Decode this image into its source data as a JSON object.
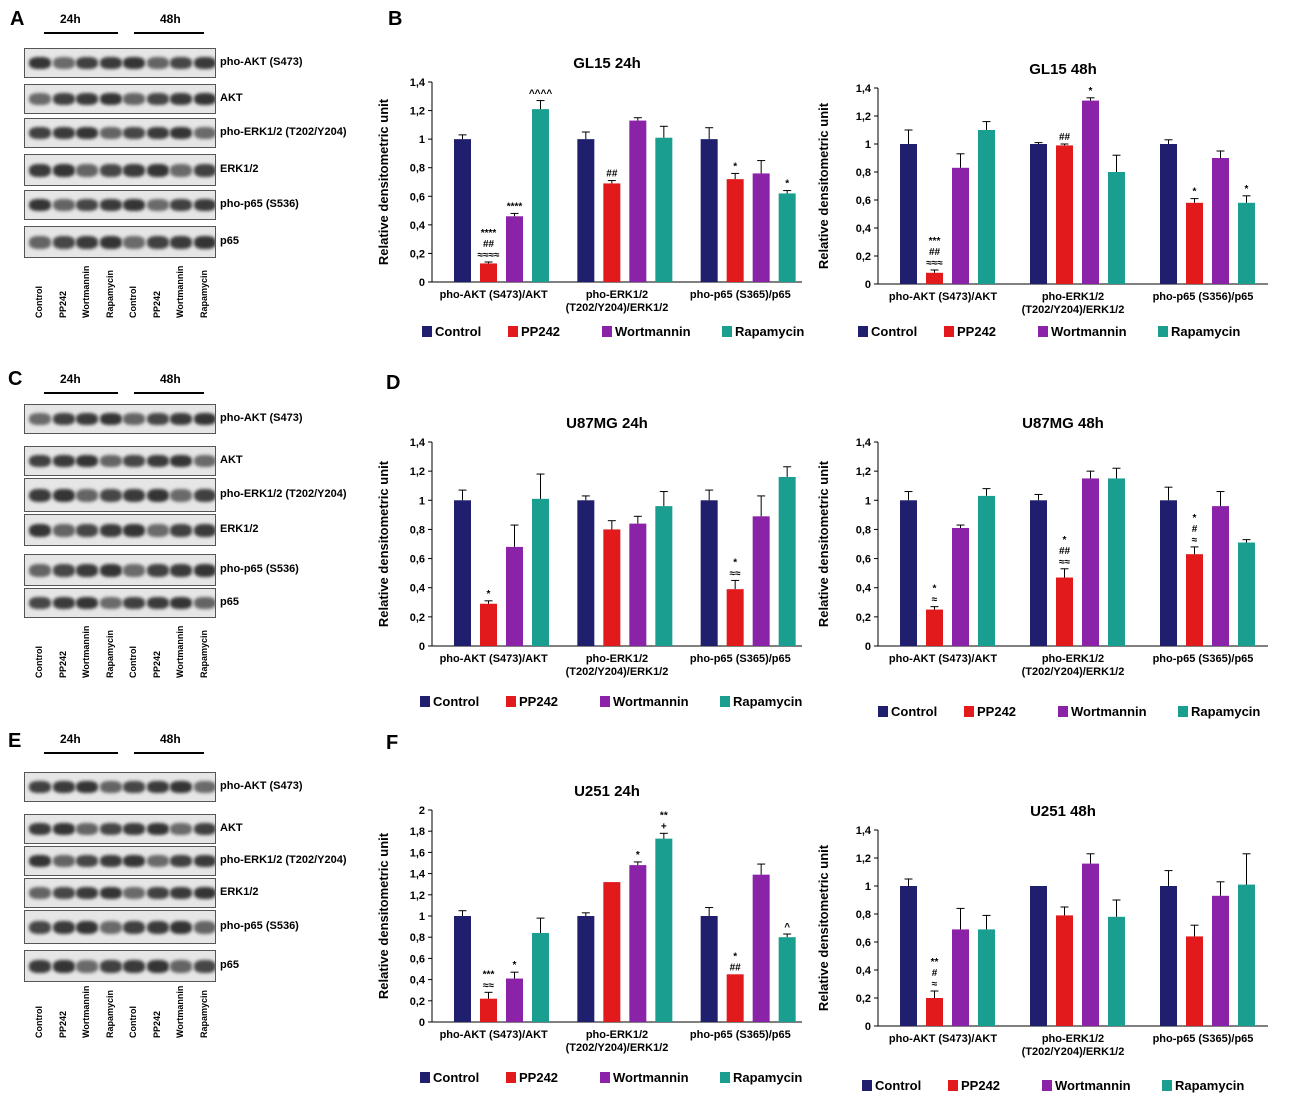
{
  "panels": {
    "A": "A",
    "B": "B",
    "C": "C",
    "D": "D",
    "E": "E",
    "F": "F"
  },
  "blots": {
    "time_labels": [
      "24h",
      "48h"
    ],
    "row_labels": [
      "pho-AKT (S473)",
      "AKT",
      "pho-ERK1/2 (T202/Y204)",
      "ERK1/2",
      "pho-p65 (S536)",
      "p65"
    ],
    "lane_labels": [
      "Control",
      "PP242",
      "Wortmannin",
      "Rapamycin",
      "Control",
      "PP242",
      "Wortmannin",
      "Rapamycin"
    ]
  },
  "legend": {
    "items": [
      "Control",
      "PP242",
      "Wortmannin",
      "Rapamycin"
    ]
  },
  "colors": {
    "Control": "#1f1f6e",
    "PP242": "#e31a1c",
    "Wortmannin": "#8a23a8",
    "Rapamycin": "#1a9e8f"
  },
  "chart_data": [
    {
      "id": "B1",
      "type": "bar",
      "title": "GL15 24h",
      "ylabel": "Relative densitometric unit",
      "ylim": [
        0,
        1.4
      ],
      "yticks": [
        "0",
        "0,2",
        "0,4",
        "0,6",
        "0,8",
        "1",
        "1,2",
        "1,4"
      ],
      "groups": [
        "pho-AKT (S473)/AKT",
        "pho-ERK1/2\n(T202/Y204)/ERK1/2",
        "pho-p65 (S365)/p65"
      ],
      "series": [
        {
          "name": "Control",
          "values": [
            1.0,
            1.0,
            1.0
          ],
          "errors": [
            0.03,
            0.05,
            0.08
          ]
        },
        {
          "name": "PP242",
          "values": [
            0.13,
            0.69,
            0.72
          ],
          "errors": [
            0.01,
            0.02,
            0.04
          ]
        },
        {
          "name": "Wortmannin",
          "values": [
            0.46,
            1.13,
            0.76
          ],
          "errors": [
            0.02,
            0.02,
            0.09
          ]
        },
        {
          "name": "Rapamycin",
          "values": [
            1.21,
            1.01,
            0.62
          ],
          "errors": [
            0.06,
            0.08,
            0.02
          ]
        }
      ],
      "annotations": [
        {
          "group": 0,
          "series": 1,
          "text": [
            "****",
            "##",
            "≈≈≈≈"
          ]
        },
        {
          "group": 0,
          "series": 2,
          "text": [
            "****"
          ]
        },
        {
          "group": 0,
          "series": 3,
          "text": [
            "^^^^"
          ]
        },
        {
          "group": 1,
          "series": 1,
          "text": [
            "##"
          ]
        },
        {
          "group": 2,
          "series": 1,
          "text": [
            "*"
          ]
        },
        {
          "group": 2,
          "series": 3,
          "text": [
            "*"
          ]
        }
      ]
    },
    {
      "id": "B2",
      "type": "bar",
      "title": "GL15 48h",
      "ylabel": "Relative densitometric unit",
      "ylim": [
        0,
        1.4
      ],
      "yticks": [
        "0",
        "0,2",
        "0,4",
        "0,6",
        "0,8",
        "1",
        "1,2",
        "1,4"
      ],
      "groups": [
        "pho-AKT (S473)/AKT",
        "pho-ERK1/2\n(T202/Y204)/ERK1/2",
        "pho-p65 (S356)/p65"
      ],
      "series": [
        {
          "name": "Control",
          "values": [
            1.0,
            1.0,
            1.0
          ],
          "errors": [
            0.1,
            0.01,
            0.03
          ]
        },
        {
          "name": "PP242",
          "values": [
            0.08,
            0.99,
            0.58
          ],
          "errors": [
            0.02,
            0.01,
            0.03
          ]
        },
        {
          "name": "Wortmannin",
          "values": [
            0.83,
            1.31,
            0.9
          ],
          "errors": [
            0.1,
            0.02,
            0.05
          ]
        },
        {
          "name": "Rapamycin",
          "values": [
            1.1,
            0.8,
            0.58
          ],
          "errors": [
            0.06,
            0.12,
            0.05
          ]
        }
      ],
      "annotations": [
        {
          "group": 0,
          "series": 1,
          "text": [
            "***",
            "##",
            "≈≈≈"
          ]
        },
        {
          "group": 1,
          "series": 1,
          "text": [
            "##"
          ]
        },
        {
          "group": 1,
          "series": 2,
          "text": [
            "*"
          ]
        },
        {
          "group": 2,
          "series": 1,
          "text": [
            "*"
          ]
        },
        {
          "group": 2,
          "series": 3,
          "text": [
            "*"
          ]
        }
      ]
    },
    {
      "id": "D1",
      "type": "bar",
      "title": "U87MG 24h",
      "ylabel": "Relative densitometric unit",
      "ylim": [
        0,
        1.4
      ],
      "yticks": [
        "0",
        "0,2",
        "0,4",
        "0,6",
        "0,8",
        "1",
        "1,2",
        "1,4"
      ],
      "groups": [
        "pho-AKT (S473)/AKT",
        "pho-ERK1/2\n(T202/Y204)/ERK1/2",
        "pho-p65 (S365)/p65"
      ],
      "series": [
        {
          "name": "Control",
          "values": [
            1.0,
            1.0,
            1.0
          ],
          "errors": [
            0.07,
            0.03,
            0.07
          ]
        },
        {
          "name": "PP242",
          "values": [
            0.29,
            0.8,
            0.39
          ],
          "errors": [
            0.02,
            0.06,
            0.06
          ]
        },
        {
          "name": "Wortmannin",
          "values": [
            0.68,
            0.84,
            0.89
          ],
          "errors": [
            0.15,
            0.05,
            0.14
          ]
        },
        {
          "name": "Rapamycin",
          "values": [
            1.01,
            0.96,
            1.16
          ],
          "errors": [
            0.17,
            0.1,
            0.07
          ]
        }
      ],
      "annotations": [
        {
          "group": 0,
          "series": 1,
          "text": [
            "*"
          ]
        },
        {
          "group": 2,
          "series": 1,
          "text": [
            "*",
            "≈≈"
          ]
        }
      ]
    },
    {
      "id": "D2",
      "type": "bar",
      "title": "U87MG 48h",
      "ylabel": "Relative densitometric unit",
      "ylim": [
        0,
        1.4
      ],
      "yticks": [
        "0",
        "0,2",
        "0,4",
        "0,6",
        "0,8",
        "1",
        "1,2",
        "1,4"
      ],
      "groups": [
        "pho-AKT (S473)/AKT",
        "pho-ERK1/2\n(T202/Y204)/ERK1/2",
        "pho-p65 (S365)/p65"
      ],
      "series": [
        {
          "name": "Control",
          "values": [
            1.0,
            1.0,
            1.0
          ],
          "errors": [
            0.06,
            0.04,
            0.09
          ]
        },
        {
          "name": "PP242",
          "values": [
            0.25,
            0.47,
            0.63
          ],
          "errors": [
            0.02,
            0.06,
            0.05
          ]
        },
        {
          "name": "Wortmannin",
          "values": [
            0.81,
            1.15,
            0.96
          ],
          "errors": [
            0.02,
            0.05,
            0.1
          ]
        },
        {
          "name": "Rapamycin",
          "values": [
            1.03,
            1.15,
            0.71
          ],
          "errors": [
            0.05,
            0.07,
            0.02
          ]
        }
      ],
      "annotations": [
        {
          "group": 0,
          "series": 1,
          "text": [
            "*",
            "≈"
          ]
        },
        {
          "group": 1,
          "series": 1,
          "text": [
            "*",
            "##",
            "≈≈"
          ]
        },
        {
          "group": 2,
          "series": 1,
          "text": [
            "*",
            "#",
            "≈"
          ]
        }
      ]
    },
    {
      "id": "F1",
      "type": "bar",
      "title": "U251 24h",
      "ylabel": "Relative densitometric unit",
      "ylim": [
        0,
        2.0
      ],
      "yticks": [
        "0",
        "0,2",
        "0,4",
        "0,6",
        "0,8",
        "1",
        "1,2",
        "1,4",
        "1,6",
        "1,8",
        "2"
      ],
      "groups": [
        "pho-AKT (S473)/AKT",
        "pho-ERK1/2\n(T202/Y204)/ERK1/2",
        "pho-p65 (S365)/p65"
      ],
      "series": [
        {
          "name": "Control",
          "values": [
            1.0,
            1.0,
            1.0
          ],
          "errors": [
            0.05,
            0.03,
            0.08
          ]
        },
        {
          "name": "PP242",
          "values": [
            0.22,
            1.32,
            0.45
          ],
          "errors": [
            0.06,
            0.0,
            0.0
          ]
        },
        {
          "name": "Wortmannin",
          "values": [
            0.41,
            1.48,
            1.39
          ],
          "errors": [
            0.06,
            0.03,
            0.1
          ]
        },
        {
          "name": "Rapamycin",
          "values": [
            0.84,
            1.73,
            0.8
          ],
          "errors": [
            0.14,
            0.05,
            0.03
          ]
        }
      ],
      "annotations": [
        {
          "group": 0,
          "series": 1,
          "text": [
            "***",
            "≈≈"
          ]
        },
        {
          "group": 0,
          "series": 2,
          "text": [
            "*"
          ]
        },
        {
          "group": 1,
          "series": 2,
          "text": [
            "*"
          ]
        },
        {
          "group": 1,
          "series": 3,
          "text": [
            "**",
            "+"
          ]
        },
        {
          "group": 2,
          "series": 1,
          "text": [
            "*",
            "##"
          ]
        },
        {
          "group": 2,
          "series": 3,
          "text": [
            "^"
          ]
        }
      ]
    },
    {
      "id": "F2",
      "type": "bar",
      "title": "U251 48h",
      "ylabel": "Relative densitometric unit",
      "ylim": [
        0,
        1.4
      ],
      "yticks": [
        "0",
        "0,2",
        "0,4",
        "0,6",
        "0,8",
        "1",
        "1,2",
        "1,4"
      ],
      "groups": [
        "pho-AKT (S473)/AKT",
        "pho-ERK1/2\n(T202/Y204)/ERK1/2",
        "pho-p65 (S365)/p65"
      ],
      "series": [
        {
          "name": "Control",
          "values": [
            1.0,
            1.0,
            1.0
          ],
          "errors": [
            0.05,
            0.0,
            0.11
          ]
        },
        {
          "name": "PP242",
          "values": [
            0.2,
            0.79,
            0.64
          ],
          "errors": [
            0.05,
            0.06,
            0.08
          ]
        },
        {
          "name": "Wortmannin",
          "values": [
            0.69,
            1.16,
            0.93
          ],
          "errors": [
            0.15,
            0.07,
            0.1
          ]
        },
        {
          "name": "Rapamycin",
          "values": [
            0.69,
            0.78,
            1.01
          ],
          "errors": [
            0.1,
            0.12,
            0.22
          ]
        }
      ],
      "annotations": [
        {
          "group": 0,
          "series": 1,
          "text": [
            "**",
            "#",
            "≈"
          ]
        }
      ]
    }
  ]
}
